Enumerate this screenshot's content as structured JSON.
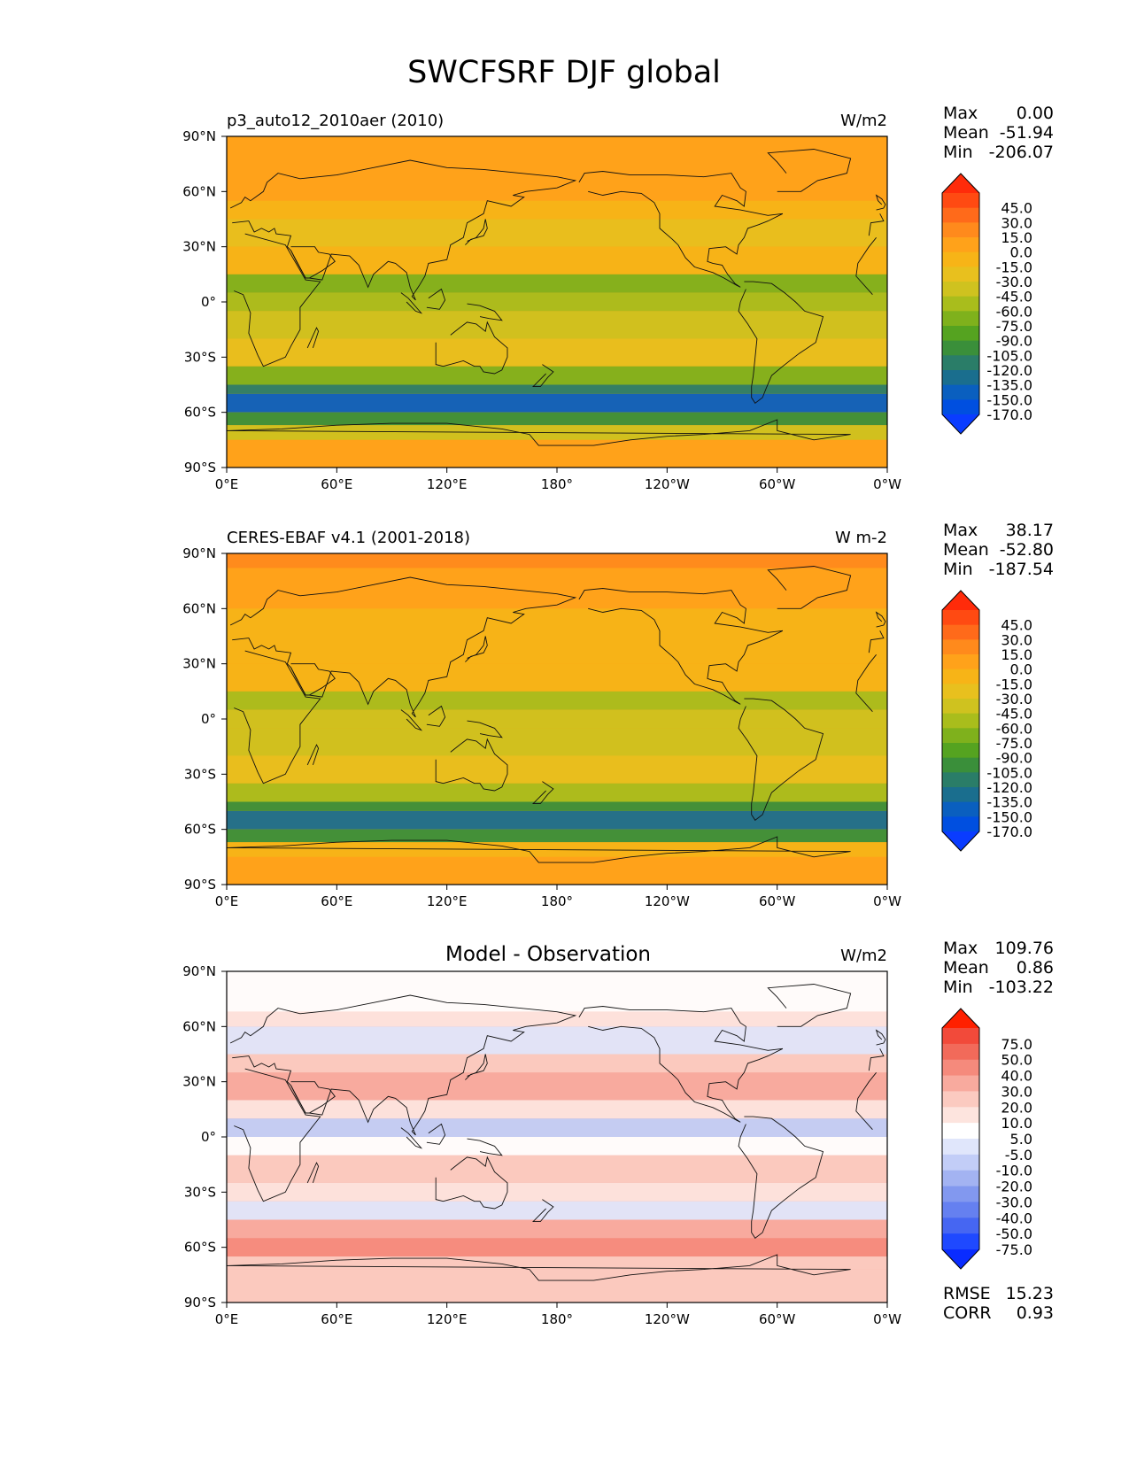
{
  "title": "SWCFSRF DJF global",
  "axes": {
    "lat_ticks": [
      "90°N",
      "60°N",
      "30°N",
      "0°",
      "30°S",
      "60°S",
      "90°S"
    ],
    "lon_ticks": [
      "0°E",
      "60°E",
      "120°E",
      "180°",
      "120°W",
      "60°W",
      "0°W"
    ]
  },
  "panels": [
    {
      "name": "model",
      "title_left": "p3_auto12_2010aer (2010)",
      "title_center": "",
      "units": "W/m2",
      "stats": [
        {
          "label": "Max",
          "value": "0.00"
        },
        {
          "label": "Mean",
          "value": "-51.94"
        },
        {
          "label": "Min",
          "value": "-206.07"
        }
      ],
      "extra_stats": [],
      "colorbar_labels": [
        "45.0",
        "30.0",
        "15.0",
        "0.0",
        "-15.0",
        "-30.0",
        "-45.0",
        "-60.0",
        "-75.0",
        "-90.0",
        "-105.0",
        "-120.0",
        "-135.0",
        "-150.0",
        "-170.0"
      ],
      "colorbar_colors": [
        "#ff2b0a",
        "#ff4a12",
        "#ff6a1a",
        "#ff8a1c",
        "#ffa21a",
        "#f7b417",
        "#e8c01e",
        "#cfc21f",
        "#a9bd1c",
        "#7fb11c",
        "#55a320",
        "#3a8f3a",
        "#2a7d68",
        "#1a6e8e",
        "#0a5fbf",
        "#004fe0",
        "#0a3cff"
      ]
    },
    {
      "name": "observation",
      "title_left": "CERES-EBAF v4.1 (2001-2018)",
      "title_center": "",
      "units": "W m-2",
      "stats": [
        {
          "label": "Max",
          "value": "38.17"
        },
        {
          "label": "Mean",
          "value": "-52.80"
        },
        {
          "label": "Min",
          "value": "-187.54"
        }
      ],
      "extra_stats": [],
      "colorbar_labels": [
        "45.0",
        "30.0",
        "15.0",
        "0.0",
        "-15.0",
        "-30.0",
        "-45.0",
        "-60.0",
        "-75.0",
        "-90.0",
        "-105.0",
        "-120.0",
        "-135.0",
        "-150.0",
        "-170.0"
      ],
      "colorbar_colors": [
        "#ff2b0a",
        "#ff4a12",
        "#ff6a1a",
        "#ff8a1c",
        "#ffa21a",
        "#f7b417",
        "#e8c01e",
        "#cfc21f",
        "#a9bd1c",
        "#7fb11c",
        "#55a320",
        "#3a8f3a",
        "#2a7d68",
        "#1a6e8e",
        "#0a5fbf",
        "#004fe0",
        "#0a3cff"
      ]
    },
    {
      "name": "difference",
      "title_left": "",
      "title_center": "Model - Observation",
      "units": "W/m2",
      "stats": [
        {
          "label": "Max",
          "value": "109.76"
        },
        {
          "label": "Mean",
          "value": "0.86"
        },
        {
          "label": "Min",
          "value": "-103.22"
        }
      ],
      "extra_stats": [
        {
          "label": "RMSE",
          "value": "15.23"
        },
        {
          "label": "CORR",
          "value": "0.93"
        }
      ],
      "colorbar_labels": [
        "75.0",
        "50.0",
        "40.0",
        "30.0",
        "20.0",
        "10.0",
        "5.0",
        "-5.0",
        "-10.0",
        "-20.0",
        "-30.0",
        "-40.0",
        "-50.0",
        "-75.0"
      ],
      "colorbar_colors": [
        "#ff2000",
        "#f24a3a",
        "#f26a5a",
        "#f58a7c",
        "#f8aa9e",
        "#fbcac0",
        "#fde4de",
        "#ffffff",
        "#e0e6fb",
        "#c2cdf7",
        "#a3b3f2",
        "#8298ef",
        "#6580f0",
        "#4666f2",
        "#1f49ff",
        "#0a2cff"
      ]
    }
  ],
  "chart_data": [
    {
      "type": "heatmap",
      "title": "p3_auto12_2010aer (2010)",
      "units": "W/m2",
      "stats": {
        "max": 0.0,
        "mean": -51.94,
        "min": -206.07
      },
      "colorbar_levels": [
        -170.0,
        -150.0,
        -135.0,
        -120.0,
        -105.0,
        -90.0,
        -75.0,
        -60.0,
        -45.0,
        -30.0,
        -15.0,
        0.0,
        15.0,
        30.0,
        45.0
      ],
      "x_ticks": [
        "0°E",
        "60°E",
        "120°E",
        "180°",
        "120°W",
        "60°W",
        "0°W"
      ],
      "y_ticks": [
        "90°N",
        "60°N",
        "30°N",
        "0°",
        "30°S",
        "60°S",
        "90°S"
      ]
    },
    {
      "type": "heatmap",
      "title": "CERES-EBAF v4.1 (2001-2018)",
      "units": "W m-2",
      "stats": {
        "max": 38.17,
        "mean": -52.8,
        "min": -187.54
      },
      "colorbar_levels": [
        -170.0,
        -150.0,
        -135.0,
        -120.0,
        -105.0,
        -90.0,
        -75.0,
        -60.0,
        -45.0,
        -30.0,
        -15.0,
        0.0,
        15.0,
        30.0,
        45.0
      ],
      "x_ticks": [
        "0°E",
        "60°E",
        "120°E",
        "180°",
        "120°W",
        "60°W",
        "0°W"
      ],
      "y_ticks": [
        "90°N",
        "60°N",
        "30°N",
        "0°",
        "30°S",
        "60°S",
        "90°S"
      ]
    },
    {
      "type": "heatmap",
      "title": "Model - Observation",
      "units": "W/m2",
      "stats": {
        "max": 109.76,
        "mean": 0.86,
        "min": -103.22,
        "rmse": 15.23,
        "corr": 0.93
      },
      "colorbar_levels": [
        -75.0,
        -50.0,
        -40.0,
        -30.0,
        -20.0,
        -10.0,
        -5.0,
        5.0,
        10.0,
        20.0,
        30.0,
        40.0,
        50.0,
        75.0
      ],
      "x_ticks": [
        "0°E",
        "60°E",
        "120°E",
        "180°",
        "120°W",
        "60°W",
        "0°W"
      ],
      "y_ticks": [
        "90°N",
        "60°N",
        "30°N",
        "0°",
        "30°S",
        "60°S",
        "90°S"
      ]
    }
  ]
}
